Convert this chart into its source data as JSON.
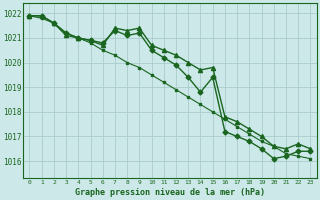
{
  "title": "Graphe pression niveau de la mer (hPa)",
  "background_color": "#cce8e8",
  "grid_color": "#aacccc",
  "line_color": "#1a6620",
  "text_color": "#1a6620",
  "xlim": [
    -0.5,
    23.5
  ],
  "ylim": [
    1015.3,
    1022.4
  ],
  "yticks": [
    1016,
    1017,
    1018,
    1019,
    1020,
    1021,
    1022
  ],
  "xticks": [
    0,
    1,
    2,
    3,
    4,
    5,
    6,
    7,
    8,
    9,
    10,
    11,
    12,
    13,
    14,
    15,
    16,
    17,
    18,
    19,
    20,
    21,
    22,
    23
  ],
  "series": [
    {
      "x": [
        0,
        1,
        2,
        3,
        4,
        5,
        6,
        7,
        8,
        9,
        10,
        11,
        12,
        13,
        14,
        15,
        16,
        17,
        18,
        19,
        20,
        21,
        22,
        23
      ],
      "y": [
        1021.9,
        1021.9,
        1021.6,
        1021.2,
        1021.0,
        1020.9,
        1020.8,
        1021.3,
        1021.1,
        1021.2,
        1020.5,
        1020.2,
        1019.9,
        1019.4,
        1018.8,
        1019.4,
        1017.2,
        1017.0,
        1016.8,
        1016.5,
        1016.1,
        1016.2,
        1016.4,
        1016.4
      ],
      "marker": "D",
      "markersize": 2.5,
      "linewidth": 1.0
    },
    {
      "x": [
        0,
        1,
        2,
        3,
        4,
        5,
        6,
        7,
        8,
        9,
        10,
        11,
        12,
        13,
        14,
        15,
        16,
        17,
        18,
        19,
        20,
        21,
        22,
        23
      ],
      "y": [
        1021.9,
        1021.9,
        1021.6,
        1021.1,
        1021.0,
        1020.9,
        1020.7,
        1021.4,
        1021.3,
        1021.4,
        1020.7,
        1020.5,
        1020.3,
        1020.0,
        1019.7,
        1019.8,
        1017.8,
        1017.6,
        1017.3,
        1017.0,
        1016.6,
        1016.5,
        1016.7,
        1016.5
      ],
      "marker": "^",
      "markersize": 3,
      "linewidth": 1.0
    },
    {
      "x": [
        0,
        1,
        2,
        3,
        4,
        5,
        6,
        7,
        8,
        9,
        10,
        11,
        12,
        13,
        14,
        15,
        16,
        17,
        18,
        19,
        20,
        21,
        22,
        23
      ],
      "y": [
        1021.9,
        1021.8,
        1021.6,
        1021.2,
        1021.0,
        1020.8,
        1020.5,
        1020.3,
        1020.0,
        1019.8,
        1019.5,
        1019.2,
        1018.9,
        1018.6,
        1018.3,
        1018.0,
        1017.7,
        1017.4,
        1017.1,
        1016.8,
        1016.6,
        1016.3,
        1016.2,
        1016.1
      ],
      "marker": "s",
      "markersize": 2,
      "linewidth": 0.8
    }
  ]
}
